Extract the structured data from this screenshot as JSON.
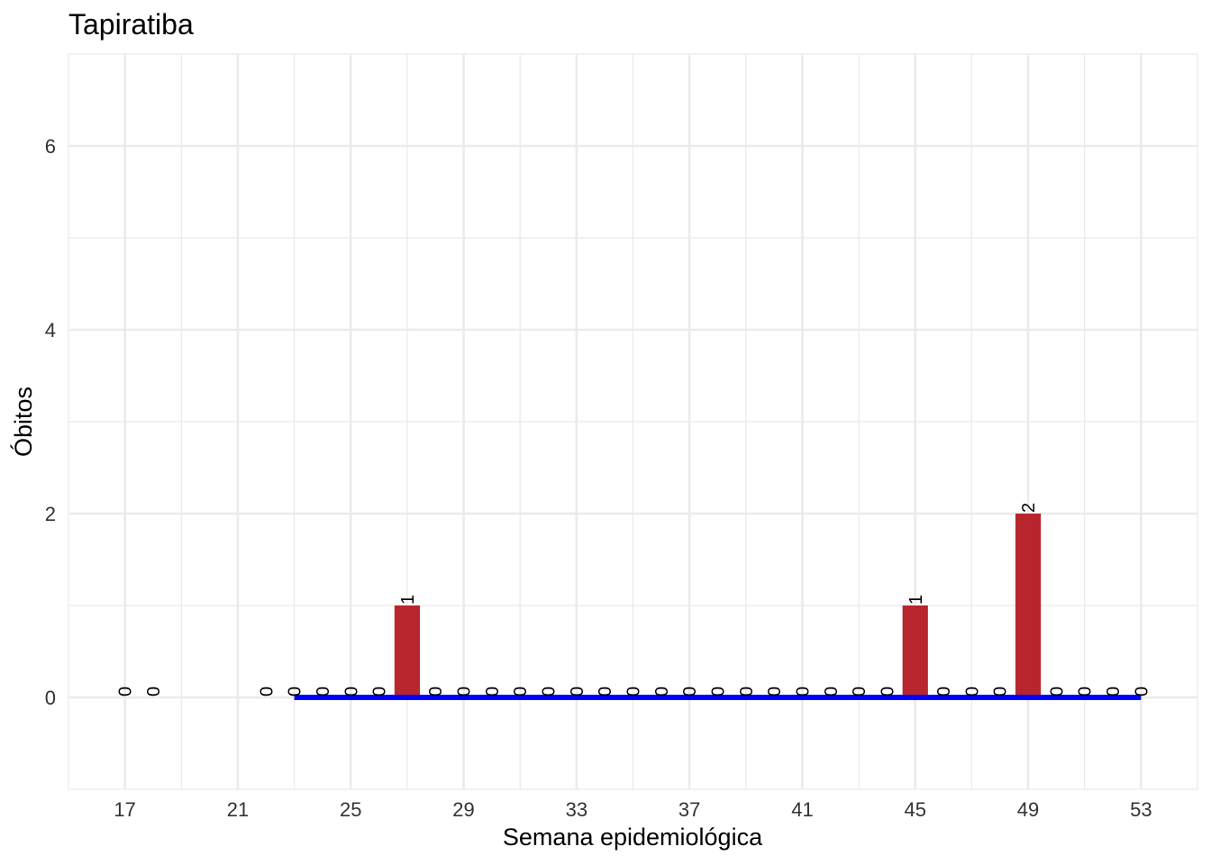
{
  "chart_data": {
    "type": "bar",
    "title": "Tapiratiba",
    "xlabel": "Semana epidemiológica",
    "ylabel": "Óbitos",
    "x": [
      17,
      18,
      22,
      23,
      24,
      25,
      26,
      27,
      28,
      29,
      30,
      31,
      32,
      33,
      34,
      35,
      36,
      37,
      38,
      39,
      40,
      41,
      42,
      43,
      44,
      45,
      46,
      47,
      48,
      49,
      50,
      51,
      52,
      53
    ],
    "values": [
      0,
      0,
      0,
      0,
      0,
      0,
      0,
      1,
      0,
      0,
      0,
      0,
      0,
      0,
      0,
      0,
      0,
      0,
      0,
      0,
      0,
      0,
      0,
      0,
      0,
      1,
      0,
      0,
      0,
      2,
      0,
      0,
      0,
      0
    ],
    "labels": [
      "0",
      "0",
      "0",
      "0",
      "0",
      "0",
      "0",
      "1",
      "0",
      "0",
      "0",
      "0",
      "0",
      "0",
      "0",
      "0",
      "0",
      "0",
      "0",
      "0",
      "0",
      "0",
      "0",
      "0",
      "0",
      "1",
      "0",
      "0",
      "0",
      "2",
      "0",
      "0",
      "0",
      "0"
    ],
    "baseline": {
      "x_start": 23,
      "x_end": 53,
      "y": 0,
      "color": "#0000ff"
    },
    "xlim": [
      15,
      55
    ],
    "ylim": [
      -1,
      7
    ],
    "x_ticks": [
      "17",
      "21",
      "25",
      "29",
      "33",
      "37",
      "41",
      "45",
      "49",
      "53"
    ],
    "y_ticks": [
      "0",
      "2",
      "4",
      "6"
    ],
    "bar_color": "#b8252d",
    "grid": true,
    "legend": "none"
  }
}
